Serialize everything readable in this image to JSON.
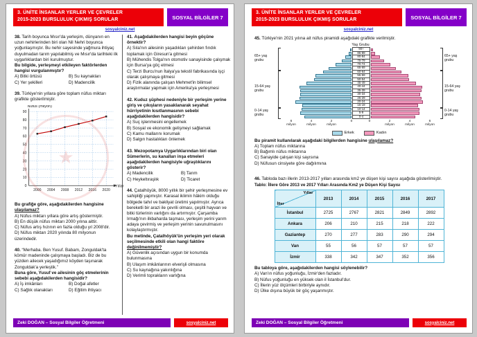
{
  "header": {
    "title_line1": "3. ÜNİTE İNSANLAR YERLER VE ÇEVRELER",
    "title_line2": "2015-2023 BURSLULUK ÇIKMIŞ SORULAR",
    "badge": "SOSYAL BİLGİLER 7",
    "site_link": "sosyalciniz.net"
  },
  "footer": {
    "author": "Zeki DOĞAN – Sosyal Bilgiler Öğretmeni",
    "site_link": "sosyalciniz.net"
  },
  "colors": {
    "header_red": "#ec0008",
    "badge_purple": "#8400c8",
    "footer_purple": "#7d00b5",
    "link_blue": "#2929c8",
    "erkek_blue": "#a8d9ea",
    "kadin_pink": "#f398bc",
    "line_red": "#c00000",
    "table_border_cyan": "#4fb4d6",
    "table_fill": "#d9f1f8"
  },
  "questions": {
    "q38": {
      "number": "38.",
      "text": "Tarih boyunca Mısır'da yerleşim, dünyanın en uzun nehirlerinden biri olan Nil Nehri boyunca yoğunlaşmıştır. Bu nehir sayesinde yağmura ihtiyaç duyulmadan tarım yapılabilmiş ve Mısır'da tarihteki ilk uygarlıklardan biri kurulmuştur.",
      "bold": "Bu bilgide, yerleşmeyi etkileyen faktörlerden hangisi vurgulanmıştır?",
      "options": [
        "A) Bitki örtüsü",
        "B) Su kaynakları",
        "C) Yer şekilleri",
        "D) Madencilik"
      ]
    },
    "q39": {
      "number": "39.",
      "text": "Türkiye'nin yıllara göre toplam nüfus miktarı grafikte gösterilmiştir.",
      "bold1": "Bu grafiğe göre, aşağıdakilerden hangisine ",
      "bold2": "ulaşılamaz?",
      "options": [
        "A) Nüfus miktarı yıllara göre artış göstermiştir.",
        "B) En düşük nüfus miktarı 2000 yılına aittir.",
        "C) Nüfus artış hızının en fazla olduğu yıl 2008'dir.",
        "D) Nüfus miktarı 2020 yılında 80 milyonun üzerindedir."
      ]
    },
    "q40": {
      "number": "40.",
      "text": "“Merhaba. Ben Yusuf. Babam, Zonguldak'ta kömür madeninde çalışmaya başladı. Biz de bu yüzden ailecek yaşadığımız köyden taşınarak Zonguldak'a yerleştik.”",
      "bold": "Buna göre, Yusuf ve ailesinin göç etmelerinin sebebi aşağıdakilerden hangisidir?",
      "options": [
        "A) İş imkânları",
        "B) Doğal afetler",
        "C) Sağlık olanakları",
        "D) Eğitim ihtiyacı"
      ]
    },
    "q41": {
      "number": "41.",
      "bold": "Aşağıdakilerden hangisi beyin göçüne örnektir?",
      "options": [
        "A) Sıla'nın ailesinin yaşadıkları şehirden fındık toplamak için Giresun'a gitmesi",
        "B) Mühendis Tolga'nın otomotiv sanayisinde çalışmak için Bursa'ya göç etmesi",
        "C) Terzi Burcu'nun İtalya'ya tekstil fabrikasında işçi olarak çalışmaya gitmesi",
        "D) Fizik alanında çalışan Mehmet'in bilimsel araştırmalar yapmak için Amerika'ya yerleşmesi"
      ]
    },
    "q42": {
      "number": "42.",
      "bold": "Kuduz şüphesi nedeniyle bir yerleşim yerine giriş ve çıkışların yasaklanarak seyahat hürriyetinin kısıtlanmasının sebebi aşağıdakilerden hangisidir?",
      "options": [
        "A) Suç işlenmesini engellemek",
        "B) Sosyal ve ekonomik gelişmeyi sağlamak",
        "C) Kamu mallarını korumak",
        "D) Salgın hastalıkları önlemek"
      ]
    },
    "q43": {
      "number": "43.",
      "bold": "Mezopotamya Uygarlıklarından biri olan Sümerlerin, su kanalları inşa etmeleri aşağıdakilerden hangisiyle uğraştıklarını gösterir?",
      "options": [
        "A) Madencilik",
        "B) Tarım",
        "C) Heykeltıraşlık",
        "D) Ticaret"
      ]
    },
    "q44": {
      "number": "44.",
      "text": "Çatalhöyük, 8000 yıllık bir şehir yerleşmesine ev sahipliği yapmıştır. Karasal iklimin hâkim olduğu bölgede tahıl ve bakliyat üretimi yapılmıştır. Ayrıca bereketli bir arazi ile çevrili olması, çeşitli hayvan ve bitki türlerinin varlığını da artırmıştır. Çarşamba Irmağı'nın ilkbaharda taşması, yerleşim yerini yarım adaya çevirmiş ve yerleşim yerinin savunulmasını kolaylaştırmıştır.",
      "bold1": "Bu metinde, Çatalhöyük'ün yerleşim yeri olarak seçilmesinde etkili olan hangi faktöre ",
      "bold2": "değinilmemiştir?",
      "options": [
        "A) Güvenlik açısından uygun bir konumda bulunmasına",
        "B) Ulaşım imkânlarının elverişli olmasına",
        "C) Su kaynağına yakınlığına",
        "D) Verimli toprakların varlığına"
      ]
    },
    "q45": {
      "number": "45.",
      "text": "Türkiye'nin 2021 yılına ait nüfus piramidi aşağıdaki grafikte verilmiştir.",
      "bold1": "Bu piramit kullanılarak aşağıdaki bilgilerden hangisine ",
      "bold2": "ulaşılamaz?",
      "options": [
        "A) Toplam nüfus miktarına",
        "B) Bağımlı nüfus miktarına",
        "C) Sanayide çalışan kişi sayısına",
        "D) Nüfusun cinsiyete göre dağılımına"
      ]
    },
    "q46": {
      "number": "46.",
      "text": "Tabloda bazı illerin 2013-2017 yılları arasında km2 ye düşen kişi sayısı aşağıda gösterilmiştir.",
      "bold": "Bu tabloya göre, aşağıdakilerden hangisi söylenebilir?",
      "options": [
        "A) Van'ın nüfus yoğunluğu, İzmir'den fazladır.",
        "B) Nüfus yoğunluğu en yüksek olan il İstanbul'dur.",
        "C) İllerin yüz ölçümleri birbiriyle aynıdır.",
        "D) Ülke dışına büyük bir göç yaşanmıştır."
      ]
    }
  },
  "chart_data": [
    {
      "type": "line",
      "title": "Türkiye'nin yıllara göre toplam nüfus miktarı",
      "ylabel": "Nüfus (milyon)",
      "xlabel": "Yıllar",
      "x": [
        2000,
        2004,
        2008,
        2012,
        2016,
        2020
      ],
      "values": [
        63,
        66,
        71,
        75,
        79,
        84
      ],
      "ylim": [
        0,
        90
      ],
      "ytick_step": 10,
      "grid": true,
      "line_color": "#c00000"
    },
    {
      "type": "bar",
      "subtype": "population-pyramid",
      "title": "Türkiye 2021 nüfus piramidi",
      "center_title": "Yaş Grubu",
      "order": "top-to-bottom",
      "categories": [
        "90+",
        "85-89",
        "80-84",
        "75-79",
        "70-74",
        "65-69",
        "60-64",
        "55-59",
        "50-54",
        "45-49",
        "40-44",
        "35-39",
        "30-34",
        "25-29",
        "20-24",
        "15-19",
        "10-14",
        "5-9",
        "0-4"
      ],
      "series": [
        {
          "name": "Erkek",
          "color": "#a8d9ea",
          "values": [
            0.1,
            0.25,
            0.6,
            1.0,
            1.6,
            2.3,
            2.8,
            3.6,
            3.7,
            4.5,
            5.2,
            5.1,
            5.1,
            5.2,
            5.6,
            4.9,
            5.0,
            5.1,
            4.7
          ]
        },
        {
          "name": "Kadın",
          "color": "#f398bc",
          "values": [
            0.2,
            0.4,
            0.9,
            1.3,
            1.9,
            2.5,
            3.0,
            3.7,
            3.8,
            4.5,
            5.1,
            5.0,
            4.9,
            5.0,
            5.2,
            4.7,
            4.8,
            4.8,
            4.4
          ]
        }
      ],
      "unit": "milyon",
      "xticks": [
        0,
        2,
        4,
        6
      ],
      "groups": [
        {
          "label": "65+ yaş grubu",
          "rows": 6
        },
        {
          "label": "15-64 yaş grubu",
          "rows": 10
        },
        {
          "label": "0-14 yaş grubu",
          "rows": 3
        }
      ]
    },
    {
      "type": "table",
      "title": "Tablo: İllere Göre 2013 ve 2017 Yılları Arasında Km2 ye Düşen Kişi Sayısı",
      "corner_top": "Yıllar",
      "corner_bottom": "İller",
      "columns": [
        "2013",
        "2014",
        "2015",
        "2016",
        "2017"
      ],
      "rows": [
        {
          "label": "İstanbul",
          "values": [
            2725,
            2767,
            2821,
            2849,
            2892
          ]
        },
        {
          "label": "Ankara",
          "values": [
            206,
            210,
            215,
            218,
            222
          ]
        },
        {
          "label": "Gaziantep",
          "values": [
            270,
            277,
            283,
            290,
            294
          ]
        },
        {
          "label": "Van",
          "values": [
            55,
            56,
            57,
            57,
            57
          ]
        },
        {
          "label": "İzmir",
          "values": [
            338,
            342,
            347,
            352,
            356
          ]
        }
      ]
    }
  ]
}
